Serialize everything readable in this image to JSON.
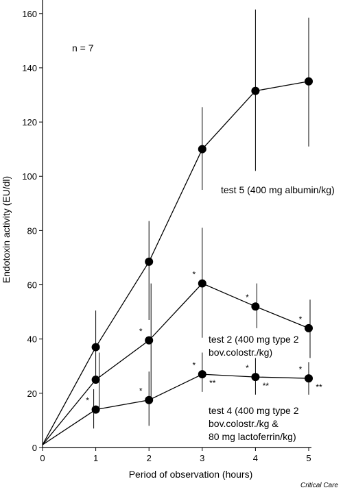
{
  "chart_data": {
    "type": "line",
    "xlabel": "Period of observation (hours)",
    "ylabel": "Endotoxin activity (EU/dl)",
    "xlim": [
      0,
      5
    ],
    "ylim": [
      0,
      165
    ],
    "xticks": [
      "0",
      "1",
      "2",
      "3",
      "4",
      "5"
    ],
    "yticks": [
      "0",
      "20",
      "40",
      "60",
      "80",
      "100",
      "120",
      "140",
      "160"
    ],
    "grid": false,
    "annotation": "n = 7",
    "credit": "Critical Care",
    "series": [
      {
        "name": "test 5 (400 mg albumin/kg)",
        "label_lines": [
          "test 5 (400 mg albumin/kg)"
        ],
        "x": [
          0,
          1,
          2,
          3,
          4,
          5
        ],
        "y": [
          1,
          37,
          68.5,
          110,
          131.5,
          135
        ],
        "err_low": [
          null,
          24,
          47,
          95,
          102,
          111
        ],
        "err_high": [
          null,
          50.5,
          83.5,
          125.5,
          161.5,
          158.5
        ],
        "sig_star": [
          null,
          null,
          null,
          null,
          null,
          null
        ],
        "sig_double": [
          null,
          null,
          null,
          null,
          null,
          null
        ]
      },
      {
        "name": "test 2 (400 mg type 2 bov.colostr./kg)",
        "label_lines": [
          "test 2 (400 mg type 2",
          "bov.colostr./kg)"
        ],
        "x": [
          0,
          1,
          2,
          3,
          4,
          5
        ],
        "y": [
          1,
          25,
          39.5,
          60.5,
          52,
          44
        ],
        "err_low": [
          null,
          14,
          18,
          40.5,
          44,
          33
        ],
        "err_high": [
          null,
          35,
          60.5,
          81,
          60.5,
          54.5
        ],
        "sig_star": [
          null,
          null,
          "*",
          "*",
          "*",
          "*"
        ],
        "sig_double": [
          null,
          null,
          null,
          null,
          null,
          null
        ]
      },
      {
        "name": "test 4 (400 mg type 2 bov.colostr./kg & 80 mg lactoferrin/kg)",
        "label_lines": [
          "test 4 (400 mg type 2",
          "bov.colostr./kg &",
          "80 mg lactoferrin/kg)"
        ],
        "x": [
          0,
          1,
          2,
          3,
          4,
          5
        ],
        "y": [
          1,
          14,
          17.5,
          27,
          26,
          25.5
        ],
        "err_low": [
          null,
          7,
          8,
          20.5,
          19.5,
          19.5
        ],
        "err_high": [
          null,
          21.5,
          28,
          35,
          33,
          31.5
        ],
        "sig_star": [
          null,
          "*",
          "*",
          "*",
          "*",
          "*"
        ],
        "sig_double": [
          null,
          null,
          null,
          "**",
          "**",
          "**"
        ]
      }
    ]
  }
}
